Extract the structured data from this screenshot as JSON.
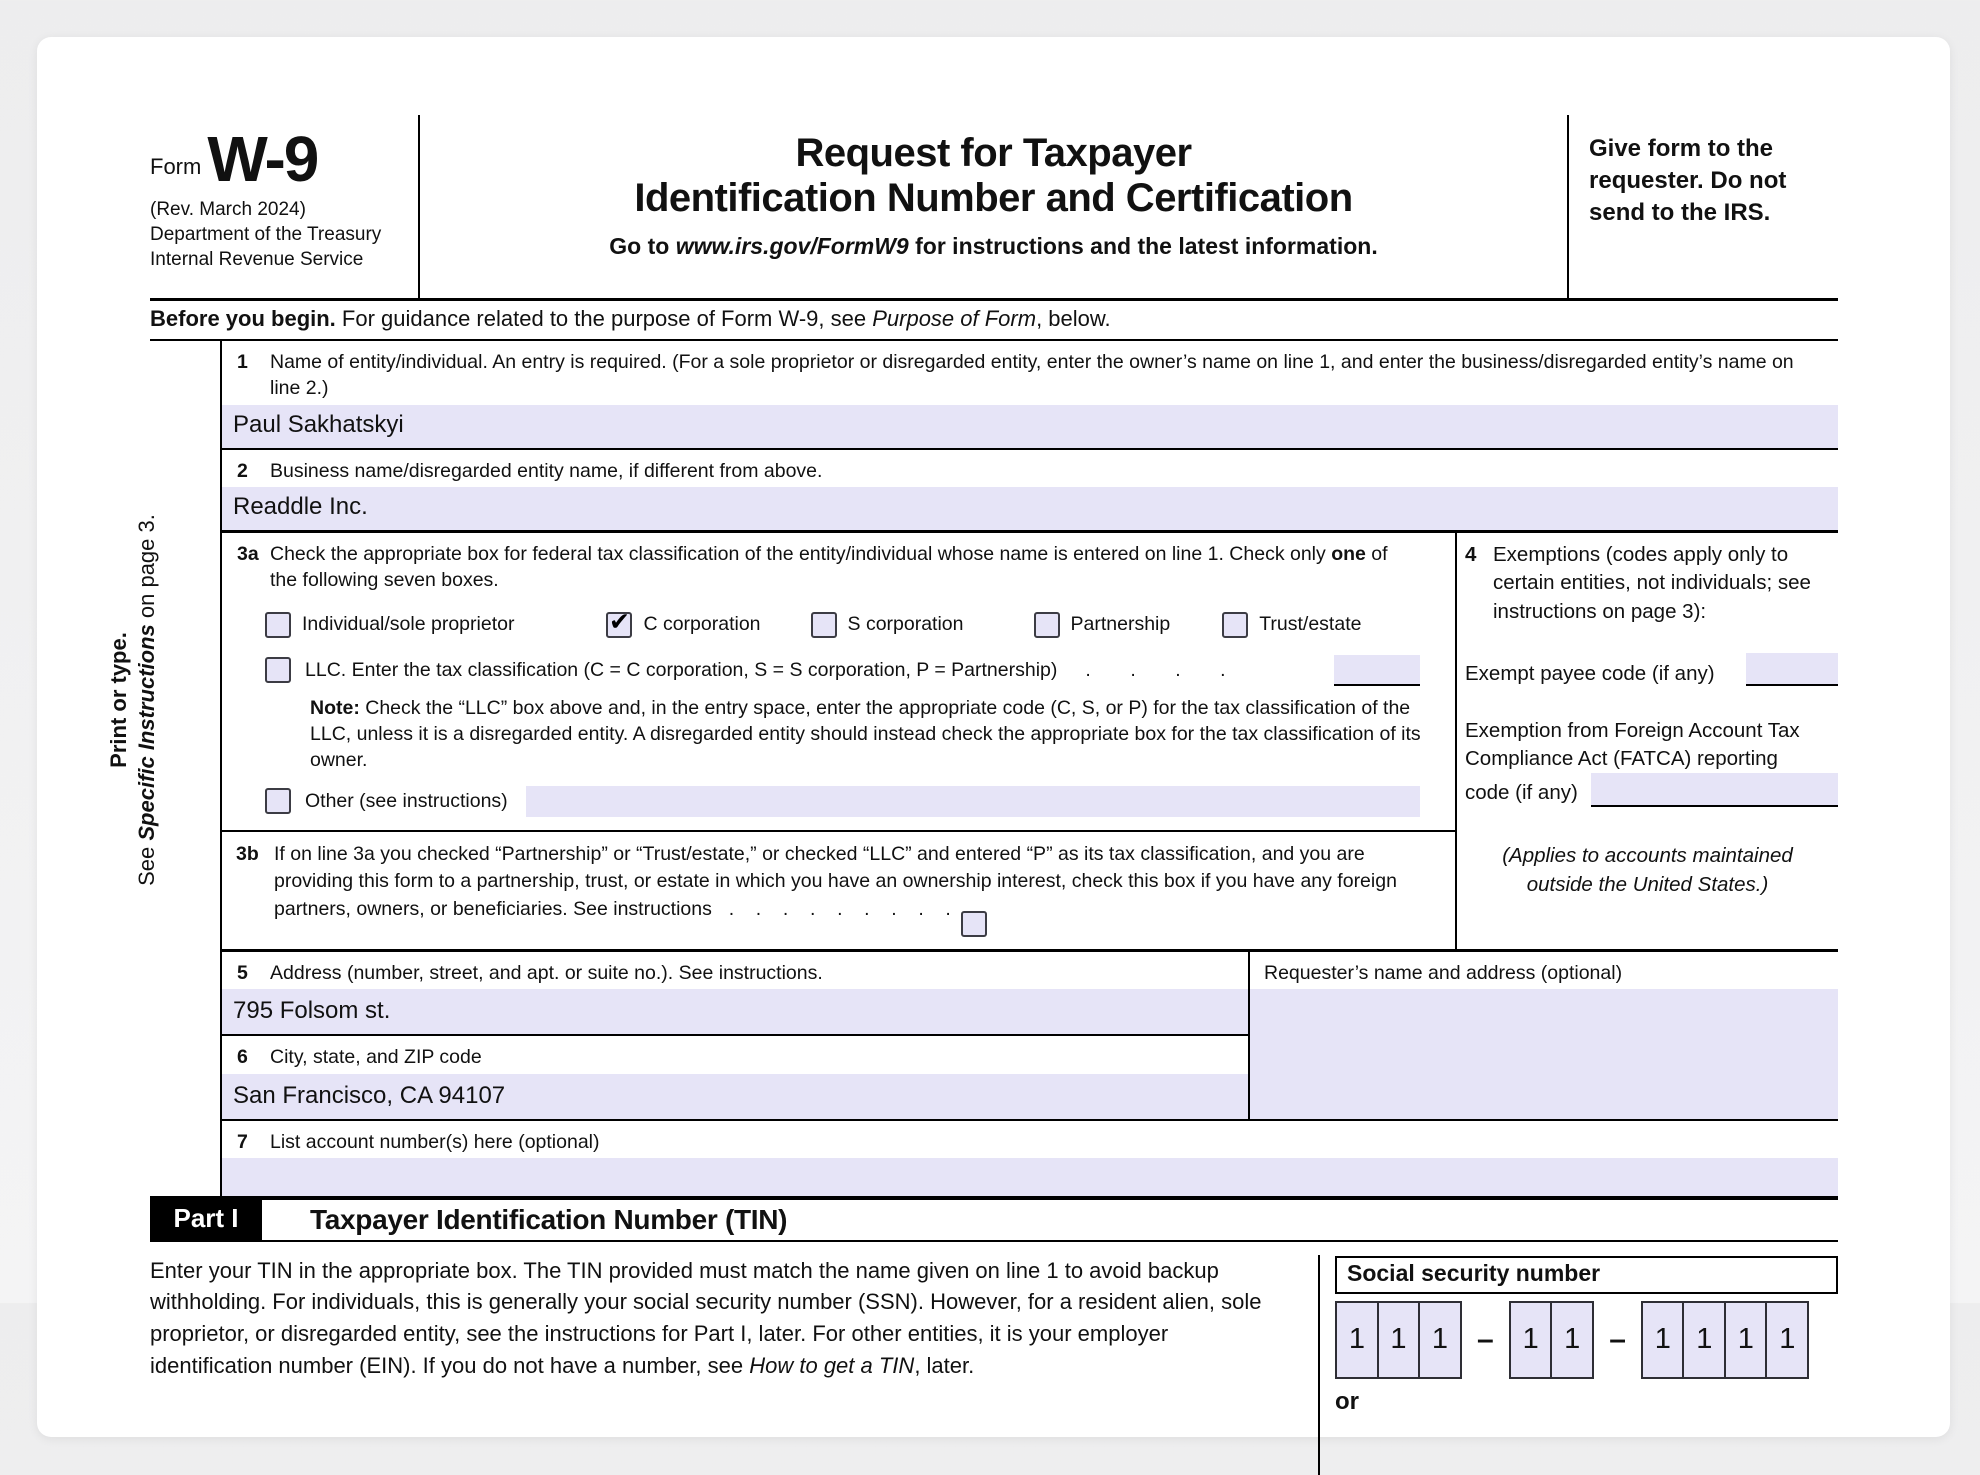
{
  "header": {
    "form_word": "Form",
    "form_number": "W-9",
    "revision": "(Rev. March 2024)",
    "dept": "Department of the Treasury",
    "agency": "Internal Revenue Service",
    "title_line1": "Request for Taxpayer",
    "title_line2": "Identification Number and Certification",
    "subtitle_prefix": "Go to ",
    "subtitle_url": "www.irs.gov/FormW9",
    "subtitle_suffix": " for instructions and the latest information.",
    "give_form": "Give form to the requester. Do not send to the IRS."
  },
  "before": {
    "bold": "Before you begin.",
    "text": " For guidance related to the purpose of Form W-9, see ",
    "italic": "Purpose of Form",
    "tail": ", below."
  },
  "side_label": {
    "line1": "Print or type.",
    "line2_pre": "See ",
    "line2_bold_italic": "Specific Instructions",
    "line2_post": " on page 3."
  },
  "fields": {
    "line1": {
      "num": "1",
      "label": "Name of entity/individual. An entry is required. (For a sole proprietor or disregarded entity, enter the owner’s name on line 1, and enter the business/disregarded entity’s name on line 2.)",
      "value": "Paul Sakhatskyi"
    },
    "line2": {
      "num": "2",
      "label": "Business name/disregarded entity name, if different from above.",
      "value": "Readdle Inc."
    },
    "line3a": {
      "num": "3a",
      "label_pre": "Check the appropriate box for federal tax classification of the entity/individual whose name is entered on line 1. Check only ",
      "label_bold": "one",
      "label_post": " of the following seven boxes.",
      "options": [
        {
          "label": "Individual/sole proprietor",
          "mark": ""
        },
        {
          "label": "C corporation",
          "mark": "✔"
        },
        {
          "label": "S corporation",
          "mark": ""
        },
        {
          "label": "Partnership",
          "mark": ""
        },
        {
          "label": "Trust/estate",
          "mark": ""
        }
      ],
      "llc": {
        "label": "LLC. Enter the tax classification (C = C corporation, S = S corporation, P = Partnership)",
        "dots": ".      .      .      .",
        "mark": "",
        "entry_value": ""
      },
      "note_bold": "Note:",
      "note_text": " Check the “LLC” box above and, in the entry space, enter the appropriate code (C, S, or P) for the tax classification of the LLC, unless it is a disregarded entity. A disregarded entity should instead check the appropriate box for the tax classification of its owner.",
      "other": {
        "label": "Other (see instructions)",
        "mark": "",
        "value": ""
      }
    },
    "line3b": {
      "num": "3b",
      "text": "If on line 3a you checked “Partnership” or “Trust/estate,” or checked “LLC” and entered “P” as its tax classification, and you are providing this form to a partnership, trust, or estate in which you have an ownership interest, check this box if you have any foreign partners, owners, or beneficiaries. See instructions",
      "dots": "  .    .    .    .    .    .    .    .    .",
      "mark": ""
    },
    "box4": {
      "num": "4",
      "label": "Exemptions (codes apply only to certain entities, not individuals; see instructions on page 3):",
      "exempt_label": "Exempt payee code (if any)",
      "exempt_value": "",
      "fatca_label_1": "Exemption from Foreign Account Tax Compliance Act (FATCA) reporting",
      "fatca_label_2": "code (if any)",
      "fatca_value": "",
      "applies_note_1": "(Applies to accounts maintained",
      "applies_note_2": "outside the United States.)"
    },
    "line5": {
      "num": "5",
      "label": "Address (number, street, and apt. or suite no.). See instructions.",
      "value": "795 Folsom st."
    },
    "requester": {
      "label": "Requester’s name and address (optional)",
      "value": ""
    },
    "line6": {
      "num": "6",
      "label": "City, state, and ZIP code",
      "value": "San Francisco, CA 94107"
    },
    "line7": {
      "num": "7",
      "label": "List account number(s) here (optional)",
      "value": ""
    }
  },
  "part1": {
    "badge": "Part I",
    "title": "Taxpayer Identification Number (TIN)",
    "paragraph_text": "Enter your TIN in the appropriate box. The TIN provided must match the name given on line 1 to avoid backup withholding. For individuals, this is generally your social security number (SSN). However, for a resident alien, sole proprietor, or disregarded entity, see the instructions for Part I, later. For other entities, it is your employer identification number (EIN). If you do not have a number, see ",
    "paragraph_italic": "How to get a TIN",
    "paragraph_tail": ", later.",
    "ssn_label": "Social security number",
    "ssn_groups": [
      {
        "digits": [
          "1",
          "1",
          "1"
        ]
      },
      {
        "digits": [
          "1",
          "1"
        ]
      },
      {
        "digits": [
          "1",
          "1",
          "1",
          "1"
        ]
      }
    ],
    "dash": "–",
    "or_label": "or"
  },
  "colors": {
    "field_highlight": "#e6e4f7",
    "rule": "#000000"
  }
}
